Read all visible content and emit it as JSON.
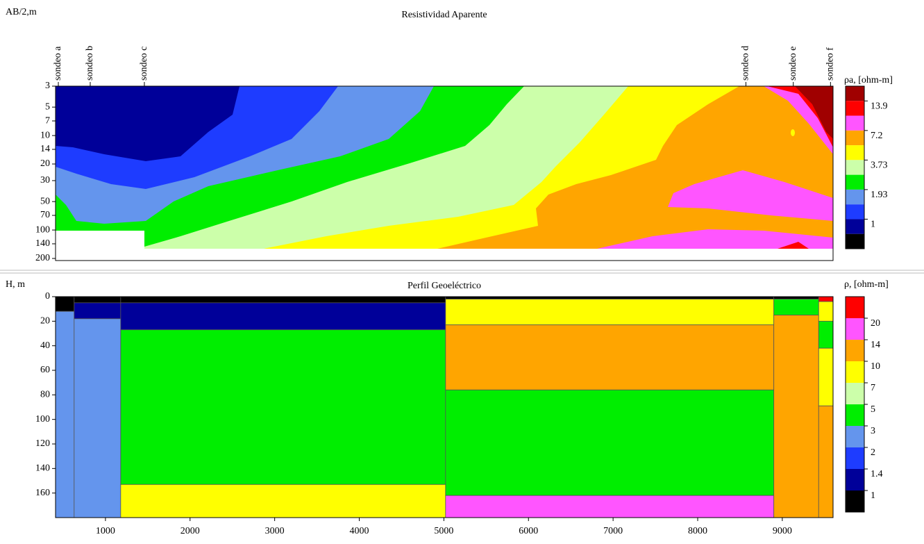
{
  "chart_data": [
    {
      "type": "contour",
      "title": "Resistividad Aparente",
      "y_label": "AB/2,m",
      "yscale": "log",
      "ylim": [
        3,
        200
      ],
      "yticks": [
        3,
        5,
        7,
        10,
        14,
        20,
        30,
        50,
        70,
        100,
        140,
        200
      ],
      "xlim": [
        410,
        9600
      ],
      "soundings": [
        {
          "name": "sondeo a",
          "x": 443
        },
        {
          "name": "sondeo b",
          "x": 820
        },
        {
          "name": "sondeo c",
          "x": 1460
        },
        {
          "name": "sondeo d",
          "x": 8570
        },
        {
          "name": "sondeo e",
          "x": 9130
        },
        {
          "name": "sondeo f",
          "x": 9570
        }
      ],
      "colorbar": {
        "label": "ρa, [ohm-m]",
        "colors": [
          "#a00000",
          "#ff0000",
          "#ff55ff",
          "#ffa500",
          "#ffff00",
          "#ccffaa",
          "#00ee00",
          "#6495ed",
          "#1e3cff",
          "#000099",
          "#000000"
        ],
        "ticks": [
          13.9,
          7.2,
          3.73,
          1.93,
          1
        ]
      }
    },
    {
      "type": "layers",
      "title": "Perfil Geoeléctrico",
      "y_label": "H, m",
      "xlim": [
        410,
        9600
      ],
      "xticks": [
        1000,
        2000,
        3000,
        4000,
        5000,
        6000,
        7000,
        8000,
        9000
      ],
      "ylim": [
        0,
        180
      ],
      "yticks": [
        0,
        20,
        40,
        60,
        80,
        100,
        120,
        140,
        160
      ],
      "layers": [
        {
          "x": [
            410,
            630
          ],
          "depth": [
            0,
            12
          ],
          "color": "#000000"
        },
        {
          "x": [
            410,
            630
          ],
          "depth": [
            12,
            180
          ],
          "color": "#6495ed"
        },
        {
          "x": [
            630,
            1180
          ],
          "depth": [
            0,
            5
          ],
          "color": "#000000"
        },
        {
          "x": [
            630,
            1180
          ],
          "depth": [
            5,
            18
          ],
          "color": "#000099"
        },
        {
          "x": [
            630,
            1180
          ],
          "depth": [
            18,
            180
          ],
          "color": "#6495ed"
        },
        {
          "x": [
            1180,
            5020
          ],
          "depth": [
            0,
            5
          ],
          "color": "#000000"
        },
        {
          "x": [
            1180,
            5020
          ],
          "depth": [
            5,
            27
          ],
          "color": "#000099"
        },
        {
          "x": [
            1180,
            5020
          ],
          "depth": [
            27,
            153
          ],
          "color": "#00ee00"
        },
        {
          "x": [
            1180,
            5020
          ],
          "depth": [
            153,
            180
          ],
          "color": "#ffff00"
        },
        {
          "x": [
            5020,
            8900
          ],
          "depth": [
            0,
            2
          ],
          "color": "#000000"
        },
        {
          "x": [
            5020,
            8900
          ],
          "depth": [
            2,
            23
          ],
          "color": "#ffff00"
        },
        {
          "x": [
            5020,
            8900
          ],
          "depth": [
            23,
            76
          ],
          "color": "#ffa500"
        },
        {
          "x": [
            5020,
            8900
          ],
          "depth": [
            76,
            162
          ],
          "color": "#00ee00"
        },
        {
          "x": [
            5020,
            8900
          ],
          "depth": [
            162,
            180
          ],
          "color": "#ff55ff"
        },
        {
          "x": [
            8900,
            9430
          ],
          "depth": [
            0,
            2
          ],
          "color": "#000000"
        },
        {
          "x": [
            8900,
            9430
          ],
          "depth": [
            2,
            15
          ],
          "color": "#00ee00"
        },
        {
          "x": [
            8900,
            9430
          ],
          "depth": [
            15,
            180
          ],
          "color": "#ffa500"
        },
        {
          "x": [
            9430,
            9600
          ],
          "depth": [
            0,
            4
          ],
          "color": "#ff0000"
        },
        {
          "x": [
            9430,
            9600
          ],
          "depth": [
            4,
            20
          ],
          "color": "#ffff00"
        },
        {
          "x": [
            9430,
            9600
          ],
          "depth": [
            20,
            42
          ],
          "color": "#00ee00"
        },
        {
          "x": [
            9430,
            9600
          ],
          "depth": [
            42,
            89
          ],
          "color": "#ffff00"
        },
        {
          "x": [
            9430,
            9600
          ],
          "depth": [
            89,
            180
          ],
          "color": "#ffa500"
        }
      ],
      "colorbar": {
        "label": "ρ, [ohm-m]",
        "colors": [
          "#ff0000",
          "#ff55ff",
          "#ffa500",
          "#ffff00",
          "#ccffaa",
          "#00ee00",
          "#6495ed",
          "#1e3cff",
          "#000099",
          "#000000"
        ],
        "ticks": [
          20,
          14,
          10,
          7,
          5,
          3,
          2,
          1.4,
          1
        ]
      }
    }
  ]
}
